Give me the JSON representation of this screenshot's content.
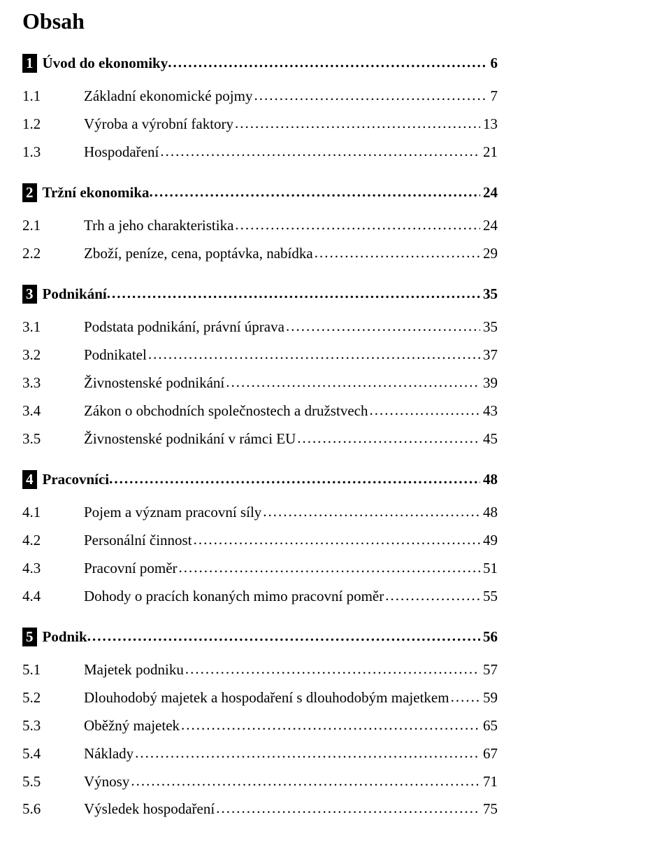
{
  "title": "Obsah",
  "text_color": "#000000",
  "background_color": "#ffffff",
  "numbox_bg": "#000000",
  "numbox_fg": "#ffffff",
  "sections": [
    {
      "num": "1",
      "label": "Úvod do ekonomiky",
      "page": "6",
      "items": [
        {
          "num": "1.1",
          "label": "Základní ekonomické pojmy",
          "page": "7"
        },
        {
          "num": "1.2",
          "label": "Výroba a výrobní faktory",
          "page": "13"
        },
        {
          "num": "1.3",
          "label": "Hospodaření",
          "page": "21"
        }
      ]
    },
    {
      "num": "2",
      "label": "Tržní ekonomika",
      "page": "24",
      "items": [
        {
          "num": "2.1",
          "label": "Trh a jeho charakteristika",
          "page": "24"
        },
        {
          "num": "2.2",
          "label": "Zboží, peníze, cena, poptávka, nabídka",
          "page": "29"
        }
      ]
    },
    {
      "num": "3",
      "label": "Podnikání",
      "page": "35",
      "items": [
        {
          "num": "3.1",
          "label": "Podstata podnikání, právní úprava",
          "page": "35"
        },
        {
          "num": "3.2",
          "label": "Podnikatel",
          "page": "37"
        },
        {
          "num": "3.3",
          "label": "Živnostenské podnikání",
          "page": "39"
        },
        {
          "num": "3.4",
          "label": "Zákon o obchodních společnostech a družstvech",
          "page": "43"
        },
        {
          "num": "3.5",
          "label": "Živnostenské podnikání v rámci EU",
          "page": "45"
        }
      ]
    },
    {
      "num": "4",
      "label": "Pracovníci",
      "page": "48",
      "items": [
        {
          "num": "4.1",
          "label": "Pojem a význam pracovní síly",
          "page": "48"
        },
        {
          "num": "4.2",
          "label": "Personální činnost",
          "page": "49"
        },
        {
          "num": "4.3",
          "label": "Pracovní poměr",
          "page": "51"
        },
        {
          "num": "4.4",
          "label": "Dohody o pracích konaných mimo pracovní poměr",
          "page": "55"
        }
      ]
    },
    {
      "num": "5",
      "label": "Podnik",
      "page": "56",
      "items": [
        {
          "num": "5.1",
          "label": "Majetek podniku",
          "page": "57"
        },
        {
          "num": "5.2",
          "label": "Dlouhodobý majetek a hospodaření s dlouhodobým majetkem",
          "page": "59"
        },
        {
          "num": "5.3",
          "label": "Oběžný majetek",
          "page": "65"
        },
        {
          "num": "5.4",
          "label": "Náklady",
          "page": "67"
        },
        {
          "num": "5.5",
          "label": "Výnosy",
          "page": "71"
        },
        {
          "num": "5.6",
          "label": "Výsledek hospodaření",
          "page": "75"
        }
      ]
    }
  ]
}
